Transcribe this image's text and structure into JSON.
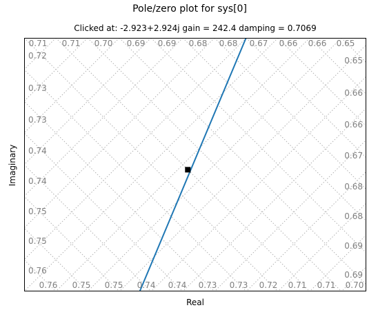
{
  "chart_data": {
    "type": "line",
    "title": "Pole/zero plot for sys[0]",
    "subtitle": "Clicked at: -2.923+2.924j   gain = 242.4  damping = 0.7069",
    "xlabel": "Real",
    "ylabel": "Imaginary",
    "xlim": [
      -3.1,
      -2.73
    ],
    "ylim": [
      2.78,
      3.08
    ],
    "grid": "damping",
    "series": [
      {
        "values": [
          [
            -2.975,
            2.78
          ],
          [
            -2.86,
            3.08
          ]
        ],
        "color": "#1f77b4"
      }
    ],
    "marker": {
      "point": [
        -2.923,
        2.924
      ],
      "shape": "square",
      "color": "#000000"
    },
    "damping_grid": [
      0.65,
      0.66,
      0.67,
      0.68,
      0.69,
      0.7,
      0.71,
      0.72,
      0.73,
      0.74,
      0.75,
      0.76
    ],
    "top_labels": [
      "0.71",
      "0.71",
      "0.70",
      "0.69",
      "0.69",
      "0.68",
      "0.68",
      "0.67",
      "0.66",
      "0.66",
      "0.65"
    ],
    "bottom_labels": [
      "0.76",
      "0.75",
      "0.75",
      "0.74",
      "0.74",
      "0.73",
      "0.73",
      "0.72",
      "0.71",
      "0.71",
      "0.70"
    ],
    "left_labels": [
      "0.72",
      "0.73",
      "0.73",
      "0.74",
      "0.74",
      "0.75",
      "0.75",
      "0.76"
    ],
    "right_labels": [
      "0.65",
      "0.66",
      "0.66",
      "0.67",
      "0.68",
      "0.68",
      "0.69",
      "0.69"
    ]
  }
}
